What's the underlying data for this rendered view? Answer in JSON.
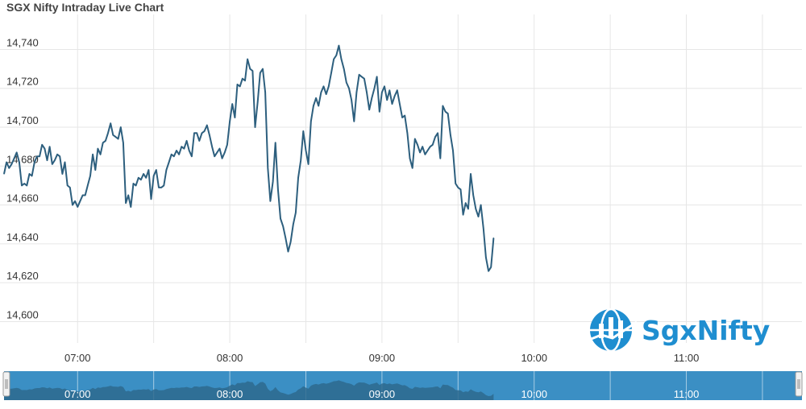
{
  "header": {
    "title": "SGX Nifty Intraday Live Chart"
  },
  "colors": {
    "line": "#2d5f7e",
    "grid": "#e6e6e6",
    "navigator_fill": "#2e6a8e",
    "navigator_bg": "#3b8fc4",
    "watermark": "#1f8ed0"
  },
  "watermark": {
    "text": "SgxNifty",
    "icon": "globe-chart-logo"
  },
  "navigator": {
    "left_handle_icon": "navigator-handle-icon",
    "right_handle_icon": "navigator-handle-icon"
  },
  "chart_data": {
    "type": "line",
    "title": "SGX Nifty Intraday Live Chart",
    "xlabel": "",
    "ylabel": "",
    "x_ticks": [
      "07:00",
      "08:00",
      "09:00",
      "10:00",
      "11:00"
    ],
    "y_ticks": [
      "14,600",
      "14,620",
      "14,640",
      "14,660",
      "14,680",
      "14,700",
      "14,720",
      "14,740"
    ],
    "xlim": [
      "06:31",
      "11:44"
    ],
    "ylim": [
      14589,
      14758
    ],
    "grid": true,
    "legend": "none",
    "series": [
      {
        "values": [
          [
            "06:31",
            14676
          ],
          [
            "06:32",
            14682
          ],
          [
            "06:33",
            14679
          ],
          [
            "06:34",
            14681
          ],
          [
            "06:35",
            14684
          ],
          [
            "06:36",
            14687
          ],
          [
            "06:37",
            14682
          ],
          [
            "06:38",
            14670
          ],
          [
            "06:39",
            14671
          ],
          [
            "06:40",
            14670
          ],
          [
            "06:41",
            14676
          ],
          [
            "06:42",
            14675
          ],
          [
            "06:43",
            14682
          ],
          [
            "06:44",
            14685
          ],
          [
            "06:45",
            14685
          ],
          [
            "06:46",
            14691
          ],
          [
            "06:47",
            14689
          ],
          [
            "06:48",
            14683
          ],
          [
            "06:49",
            14690
          ],
          [
            "06:50",
            14681
          ],
          [
            "06:51",
            14683
          ],
          [
            "06:52",
            14686
          ],
          [
            "06:53",
            14685
          ],
          [
            "06:54",
            14676
          ],
          [
            "06:55",
            14682
          ],
          [
            "06:56",
            14670
          ],
          [
            "06:57",
            14669
          ],
          [
            "06:58",
            14660
          ],
          [
            "06:59",
            14662
          ],
          [
            "07:00",
            14659
          ],
          [
            "07:01",
            14662
          ],
          [
            "07:02",
            14665
          ],
          [
            "07:03",
            14665
          ],
          [
            "07:04",
            14670
          ],
          [
            "07:05",
            14675
          ],
          [
            "07:06",
            14686
          ],
          [
            "07:07",
            14678
          ],
          [
            "07:08",
            14689
          ],
          [
            "07:09",
            14686
          ],
          [
            "07:10",
            14692
          ],
          [
            "07:11",
            14693
          ],
          [
            "07:12",
            14697
          ],
          [
            "07:13",
            14702
          ],
          [
            "07:14",
            14696
          ],
          [
            "07:15",
            14695
          ],
          [
            "07:16",
            14694
          ],
          [
            "07:17",
            14700
          ],
          [
            "07:18",
            14692
          ],
          [
            "07:19",
            14661
          ],
          [
            "07:20",
            14665
          ],
          [
            "07:21",
            14659
          ],
          [
            "07:22",
            14671
          ],
          [
            "07:23",
            14670
          ],
          [
            "07:24",
            14674
          ],
          [
            "07:25",
            14673
          ],
          [
            "07:26",
            14676
          ],
          [
            "07:27",
            14674
          ],
          [
            "07:28",
            14678
          ],
          [
            "07:29",
            14663
          ],
          [
            "07:30",
            14675
          ],
          [
            "07:31",
            14678
          ],
          [
            "07:32",
            14669
          ],
          [
            "07:33",
            14669
          ],
          [
            "07:34",
            14670
          ],
          [
            "07:35",
            14678
          ],
          [
            "07:36",
            14682
          ],
          [
            "07:37",
            14686
          ],
          [
            "07:38",
            14685
          ],
          [
            "07:39",
            14688
          ],
          [
            "07:40",
            14686
          ],
          [
            "07:41",
            14690
          ],
          [
            "07:42",
            14689
          ],
          [
            "07:43",
            14693
          ],
          [
            "07:44",
            14688
          ],
          [
            "07:45",
            14685
          ],
          [
            "07:46",
            14697
          ],
          [
            "07:47",
            14697
          ],
          [
            "07:48",
            14693
          ],
          [
            "07:49",
            14697
          ],
          [
            "07:50",
            14698
          ],
          [
            "07:51",
            14701
          ],
          [
            "07:52",
            14696
          ],
          [
            "07:53",
            14690
          ],
          [
            "07:54",
            14685
          ],
          [
            "07:55",
            14687
          ],
          [
            "07:56",
            14689
          ],
          [
            "07:57",
            14684
          ],
          [
            "07:58",
            14687
          ],
          [
            "07:59",
            14691
          ],
          [
            "08:00",
            14703
          ],
          [
            "08:01",
            14712
          ],
          [
            "08:02",
            14705
          ],
          [
            "08:03",
            14722
          ],
          [
            "08:04",
            14721
          ],
          [
            "08:05",
            14725
          ],
          [
            "08:06",
            14724
          ],
          [
            "08:07",
            14735
          ],
          [
            "08:08",
            14730
          ],
          [
            "08:09",
            14729
          ],
          [
            "08:10",
            14700
          ],
          [
            "08:11",
            14713
          ],
          [
            "08:12",
            14728
          ],
          [
            "08:13",
            14730
          ],
          [
            "08:14",
            14718
          ],
          [
            "08:15",
            14679
          ],
          [
            "08:16",
            14662
          ],
          [
            "08:17",
            14672
          ],
          [
            "08:18",
            14692
          ],
          [
            "08:19",
            14668
          ],
          [
            "08:20",
            14653
          ],
          [
            "08:21",
            14649
          ],
          [
            "08:22",
            14643
          ],
          [
            "08:23",
            14636
          ],
          [
            "08:24",
            14641
          ],
          [
            "08:25",
            14650
          ],
          [
            "08:26",
            14656
          ],
          [
            "08:27",
            14674
          ],
          [
            "08:28",
            14683
          ],
          [
            "08:29",
            14698
          ],
          [
            "08:30",
            14688
          ],
          [
            "08:31",
            14681
          ],
          [
            "08:32",
            14703
          ],
          [
            "08:33",
            14711
          ],
          [
            "08:34",
            14715
          ],
          [
            "08:35",
            14711
          ],
          [
            "08:36",
            14718
          ],
          [
            "08:37",
            14721
          ],
          [
            "08:38",
            14717
          ],
          [
            "08:39",
            14721
          ],
          [
            "08:40",
            14728
          ],
          [
            "08:41",
            14735
          ],
          [
            "08:42",
            14737
          ],
          [
            "08:43",
            14742
          ],
          [
            "08:44",
            14735
          ],
          [
            "08:45",
            14730
          ],
          [
            "08:46",
            14723
          ],
          [
            "08:47",
            14720
          ],
          [
            "08:48",
            14714
          ],
          [
            "08:49",
            14703
          ],
          [
            "08:50",
            14718
          ],
          [
            "08:51",
            14727
          ],
          [
            "08:52",
            14726
          ],
          [
            "08:53",
            14725
          ],
          [
            "08:54",
            14718
          ],
          [
            "08:55",
            14709
          ],
          [
            "08:56",
            14715
          ],
          [
            "08:57",
            14720
          ],
          [
            "08:58",
            14726
          ],
          [
            "08:59",
            14708
          ],
          [
            "09:00",
            14718
          ],
          [
            "09:01",
            14721
          ],
          [
            "09:02",
            14714
          ],
          [
            "09:03",
            14719
          ],
          [
            "09:04",
            14712
          ],
          [
            "09:05",
            14716
          ],
          [
            "09:06",
            14719
          ],
          [
            "09:07",
            14712
          ],
          [
            "09:08",
            14705
          ],
          [
            "09:09",
            14706
          ],
          [
            "09:10",
            14697
          ],
          [
            "09:11",
            14684
          ],
          [
            "09:12",
            14679
          ],
          [
            "09:13",
            14694
          ],
          [
            "09:14",
            14691
          ],
          [
            "09:15",
            14687
          ],
          [
            "09:16",
            14690
          ],
          [
            "09:17",
            14686
          ],
          [
            "09:18",
            14688
          ],
          [
            "09:19",
            14690
          ],
          [
            "09:20",
            14691
          ],
          [
            "09:21",
            14695
          ],
          [
            "09:22",
            14697
          ],
          [
            "09:23",
            14684
          ],
          [
            "09:24",
            14711
          ],
          [
            "09:25",
            14708
          ],
          [
            "09:26",
            14707
          ],
          [
            "09:27",
            14696
          ],
          [
            "09:28",
            14688
          ],
          [
            "09:29",
            14671
          ],
          [
            "09:30",
            14669
          ],
          [
            "09:31",
            14668
          ],
          [
            "09:32",
            14655
          ],
          [
            "09:33",
            14661
          ],
          [
            "09:34",
            14658
          ],
          [
            "09:35",
            14676
          ],
          [
            "09:36",
            14665
          ],
          [
            "09:37",
            14658
          ],
          [
            "09:38",
            14654
          ],
          [
            "09:39",
            14660
          ],
          [
            "09:40",
            14648
          ],
          [
            "09:41",
            14633
          ],
          [
            "09:42",
            14626
          ],
          [
            "09:43",
            14628
          ],
          [
            "09:44",
            14643
          ]
        ]
      }
    ]
  }
}
